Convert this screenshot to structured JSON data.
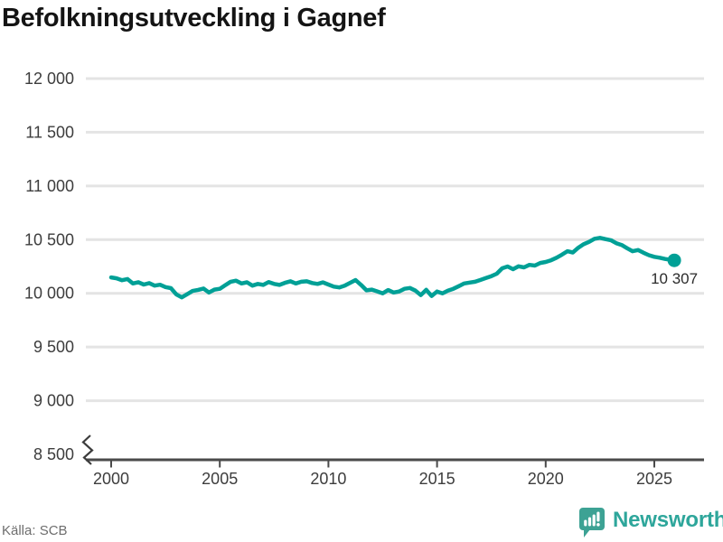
{
  "header": {
    "title": "Befolkningsutveckling i Gagnef"
  },
  "footer": {
    "source": "Källa: SCB",
    "brand": "Newsworthy"
  },
  "colors": {
    "line": "#00a096",
    "dot": "#00a096",
    "grid": "#e4e4e4",
    "axis": "#4a4a4a",
    "tick_text": "#3d3d3d",
    "title_text": "#141414",
    "source_text": "#6e6e6e",
    "brand_teal": "#2ea69b",
    "logo_bg": "#3da294",
    "end_label_text": "#2b2b2b"
  },
  "chart_data": {
    "type": "line",
    "title": "Befolkningsutveckling i Gagnef",
    "xlabel": "",
    "ylabel": "",
    "grid": "horizontal",
    "legend": "none",
    "axis_break_at_bottom": true,
    "ylim": [
      8500,
      12000
    ],
    "xlim": [
      2000,
      2027.3
    ],
    "y_ticks": {
      "values": [
        8500,
        9000,
        9500,
        10000,
        10500,
        11000,
        11500,
        12000
      ],
      "labels": [
        "8 500",
        "9 000",
        "9 500",
        "10 000",
        "10 500",
        "11 000",
        "11 500",
        "12 000"
      ]
    },
    "x_ticks": {
      "values": [
        2000,
        2005,
        2010,
        2015,
        2020,
        2025
      ],
      "labels": [
        "2000",
        "2005",
        "2010",
        "2015",
        "2020",
        "2025"
      ]
    },
    "end_label": "10 307",
    "end_value": 10307,
    "series": [
      {
        "name": "Befolkning",
        "x": [
          2000,
          2000.25,
          2000.5,
          2000.75,
          2001,
          2001.25,
          2001.5,
          2001.75,
          2002,
          2002.25,
          2002.5,
          2002.75,
          2003,
          2003.25,
          2003.5,
          2003.75,
          2004,
          2004.25,
          2004.5,
          2004.75,
          2005,
          2005.25,
          2005.5,
          2005.75,
          2006,
          2006.25,
          2006.5,
          2006.75,
          2007,
          2007.25,
          2007.5,
          2007.75,
          2008,
          2008.25,
          2008.5,
          2008.75,
          2009,
          2009.25,
          2009.5,
          2009.75,
          2010,
          2010.25,
          2010.5,
          2010.75,
          2011,
          2011.25,
          2011.5,
          2011.75,
          2012,
          2012.25,
          2012.5,
          2012.75,
          2013,
          2013.25,
          2013.5,
          2013.75,
          2014,
          2014.25,
          2014.5,
          2014.75,
          2015,
          2015.25,
          2015.5,
          2015.75,
          2016,
          2016.25,
          2016.5,
          2016.75,
          2017,
          2017.25,
          2017.5,
          2017.75,
          2018,
          2018.25,
          2018.5,
          2018.75,
          2019,
          2019.25,
          2019.5,
          2019.75,
          2020,
          2020.25,
          2020.5,
          2020.75,
          2021,
          2021.25,
          2021.5,
          2021.75,
          2022,
          2022.25,
          2022.5,
          2022.75,
          2023,
          2023.25,
          2023.5,
          2023.75,
          2024,
          2024.25,
          2024.5,
          2024.75,
          2025,
          2025.25,
          2025.5,
          2025.75,
          2025.92
        ],
        "y": [
          10148,
          10140,
          10122,
          10133,
          10092,
          10104,
          10082,
          10095,
          10072,
          10080,
          10058,
          10048,
          9990,
          9962,
          9992,
          10022,
          10032,
          10045,
          10008,
          10035,
          10042,
          10075,
          10108,
          10118,
          10092,
          10103,
          10072,
          10088,
          10078,
          10105,
          10088,
          10078,
          10098,
          10112,
          10092,
          10108,
          10112,
          10096,
          10088,
          10102,
          10082,
          10062,
          10055,
          10072,
          10098,
          10124,
          10078,
          10028,
          10035,
          10018,
          10000,
          10030,
          10008,
          10017,
          10042,
          10050,
          10025,
          9983,
          10033,
          9975,
          10017,
          10000,
          10025,
          10042,
          10067,
          10092,
          10100,
          10108,
          10125,
          10142,
          10160,
          10183,
          10233,
          10250,
          10225,
          10252,
          10242,
          10265,
          10258,
          10283,
          10292,
          10308,
          10332,
          10360,
          10392,
          10380,
          10425,
          10458,
          10480,
          10508,
          10517,
          10505,
          10495,
          10467,
          10450,
          10420,
          10392,
          10403,
          10378,
          10355,
          10340,
          10332,
          10320,
          10312,
          10307
        ]
      }
    ]
  }
}
